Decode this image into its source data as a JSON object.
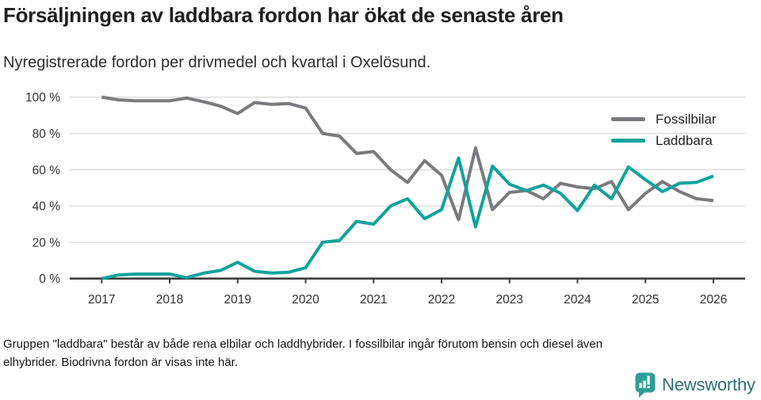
{
  "header": {
    "title": "Försäljningen av laddbara fordon har ökat de senaste åren",
    "subtitle": "Nyregistrerade fordon per drivmedel och kvartal i Oxelösund."
  },
  "legend": {
    "items": [
      {
        "label": "Fossilbilar",
        "color": "#7a7a7e"
      },
      {
        "label": "Laddbara",
        "color": "#0fa39b"
      }
    ]
  },
  "chart_data": {
    "type": "line",
    "unit": "%",
    "grid": "horizontal",
    "legend_position": "top-right",
    "ylim": [
      0,
      100
    ],
    "y_ticks": [
      0,
      20,
      40,
      60,
      80,
      100
    ],
    "y_tick_suffix": " %",
    "x_tick_years": [
      "2017",
      "2018",
      "2019",
      "2020",
      "2021",
      "2022",
      "2023",
      "2024",
      "2025",
      "2026"
    ],
    "x": [
      "2017 K1",
      "2017 K2",
      "2017 K3",
      "2017 K4",
      "2018 K1",
      "2018 K2",
      "2018 K3",
      "2018 K4",
      "2019 K1",
      "2019 K2",
      "2019 K3",
      "2019 K4",
      "2020 K1",
      "2020 K2",
      "2020 K3",
      "2020 K4",
      "2021 K1",
      "2021 K2",
      "2021 K3",
      "2021 K4",
      "2022 K1",
      "2022 K2",
      "2022 K3",
      "2022 K4",
      "2023 K1",
      "2023 K2",
      "2023 K3",
      "2023 K4",
      "2024 K1",
      "2024 K2",
      "2024 K3",
      "2024 K4",
      "2025 K1",
      "2025 K2",
      "2025 K3",
      "2025 K4",
      "2026 K1"
    ],
    "series": [
      {
        "name": "Fossilbilar",
        "color": "#7a7a7e",
        "values": [
          100,
          98.5,
          98,
          98,
          98,
          99.5,
          97.5,
          95,
          91,
          97,
          96,
          96.5,
          94,
          80,
          78.5,
          69,
          70,
          60,
          53,
          65,
          57,
          32.5,
          72,
          38,
          47.5,
          48.5,
          44,
          52.5,
          50.5,
          49.5,
          53.5,
          38,
          47,
          53.5,
          48,
          44,
          43
        ]
      },
      {
        "name": "Laddbara",
        "color": "#0fa39b",
        "values": [
          0,
          2,
          2.5,
          2.5,
          2.5,
          0.5,
          3,
          4.5,
          9,
          4,
          3,
          3.5,
          6,
          20,
          21,
          31.5,
          30,
          40,
          44,
          33,
          38,
          66.5,
          28.5,
          62,
          52,
          48.5,
          51.5,
          47,
          37.5,
          51.5,
          44,
          61.5,
          54.5,
          48,
          52.5,
          53,
          56.5
        ]
      }
    ]
  },
  "footer": {
    "line1": "Gruppen \"laddbara\" består av både rena elbilar och laddhybrider. I fossilbilar ingår förutom bensin och diesel även",
    "line2": "elhybrider. Biodrivna fordon är visas inte här."
  },
  "logo": {
    "text": "Newsworthy",
    "icon": "newsworthy-speech-bubble-chart-icon",
    "icon_color": "#2f9e98",
    "text_color": "#2d6f7a"
  }
}
